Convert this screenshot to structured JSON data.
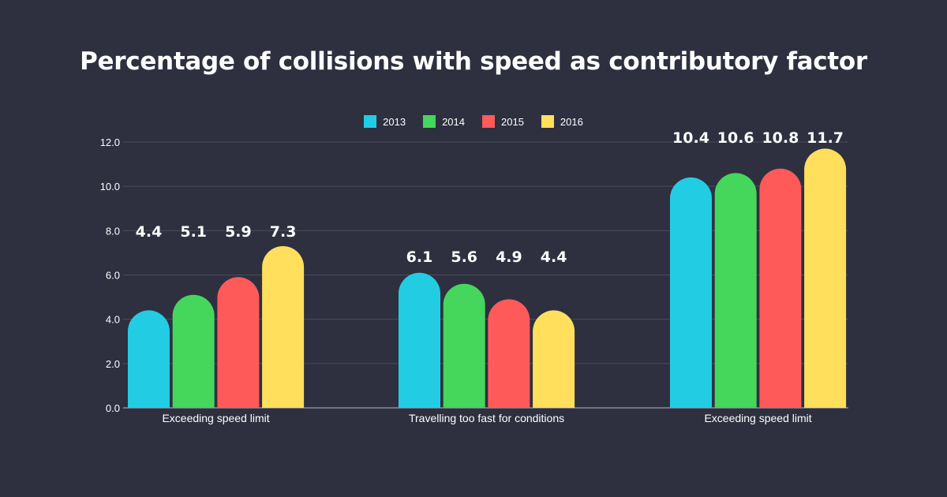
{
  "chart_data": {
    "type": "bar",
    "title": "Percentage of collisions with speed as contributory factor",
    "categories": [
      "Exceeding speed limit",
      "Travelling too fast for conditions",
      "Exceeding speed limit"
    ],
    "series": [
      {
        "name": "2013",
        "color": "#22cde4",
        "values": [
          4.4,
          6.1,
          10.4
        ]
      },
      {
        "name": "2014",
        "color": "#45d65c",
        "values": [
          5.1,
          5.6,
          10.6
        ]
      },
      {
        "name": "2015",
        "color": "#ff5a5a",
        "values": [
          5.9,
          4.9,
          10.8
        ]
      },
      {
        "name": "2016",
        "color": "#ffdf5c",
        "values": [
          7.3,
          4.4,
          11.7
        ]
      }
    ],
    "ylim": [
      0,
      12
    ],
    "yticks": [
      "0.0",
      "2.0",
      "4.0",
      "6.0",
      "8.0",
      "10.0",
      "12.0"
    ],
    "grid": true,
    "legend": "top-center",
    "xlabel": "",
    "ylabel": ""
  }
}
